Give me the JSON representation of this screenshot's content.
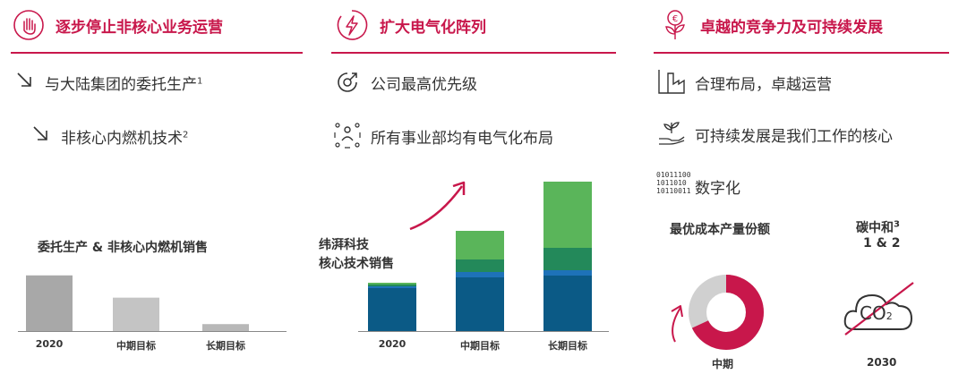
{
  "columns": [
    {
      "title": "逐步停止非核心业务运营",
      "icon": "hand-stop-icon",
      "items": [
        {
          "icon": "arrow-down-right-icon",
          "text": "与大陆集团的委托生产",
          "sup": "1"
        },
        {
          "icon": "arrow-down-right-icon",
          "text": "非核心内燃机技术",
          "sup": "2"
        }
      ],
      "chart_label": "委托生产 & 非核心内燃机销售"
    },
    {
      "title": "扩大电气化阵列",
      "icon": "lightning-circle-icon",
      "items": [
        {
          "icon": "upgrade-arrow-icon",
          "text": "公司最高优先级"
        },
        {
          "icon": "team-network-icon",
          "text": "所有事业部均有电气化布局"
        }
      ],
      "chart_label_line1": "纬湃科技",
      "chart_label_line2": "核心技术销售"
    },
    {
      "title": "卓越的竞争力及可持续发展",
      "icon": "euro-plant-icon",
      "items": [
        {
          "icon": "factory-chart-icon",
          "text": "合理布局，卓越运营"
        },
        {
          "icon": "hand-plant-icon",
          "text": "可持续发展是我们工作的核心"
        },
        {
          "icon": "binary-code-icon",
          "text": "数字化"
        }
      ],
      "donut_title": "最优成本产量份额",
      "donut_label": "中期",
      "donut_share": 0.68,
      "carbon_title": "碳中和",
      "carbon_sup": "3",
      "carbon_sub": "1 & 2",
      "carbon_icon_text": "CO",
      "carbon_icon_sub": "2",
      "carbon_label": "2030"
    }
  ],
  "chart_data": [
    {
      "type": "bar",
      "categories": [
        "2020",
        "中期目标",
        "长期目标"
      ],
      "values": [
        40,
        24,
        5
      ],
      "colors": [
        "#a8a8a8",
        "#c4c4c4",
        "#b8b8b8"
      ]
    },
    {
      "type": "bar",
      "stacked": true,
      "categories": [
        "2020",
        "中期目标",
        "长期目标"
      ],
      "series": [
        {
          "values": [
            48,
            60,
            62
          ],
          "color": "#0b5a86"
        },
        {
          "values": [
            2,
            6,
            6
          ],
          "color": "#1e72b8"
        },
        {
          "values": [
            2,
            14,
            25
          ],
          "color": "#23895a"
        },
        {
          "values": [
            2,
            32,
            74
          ],
          "color": "#5ab55a"
        }
      ]
    }
  ]
}
